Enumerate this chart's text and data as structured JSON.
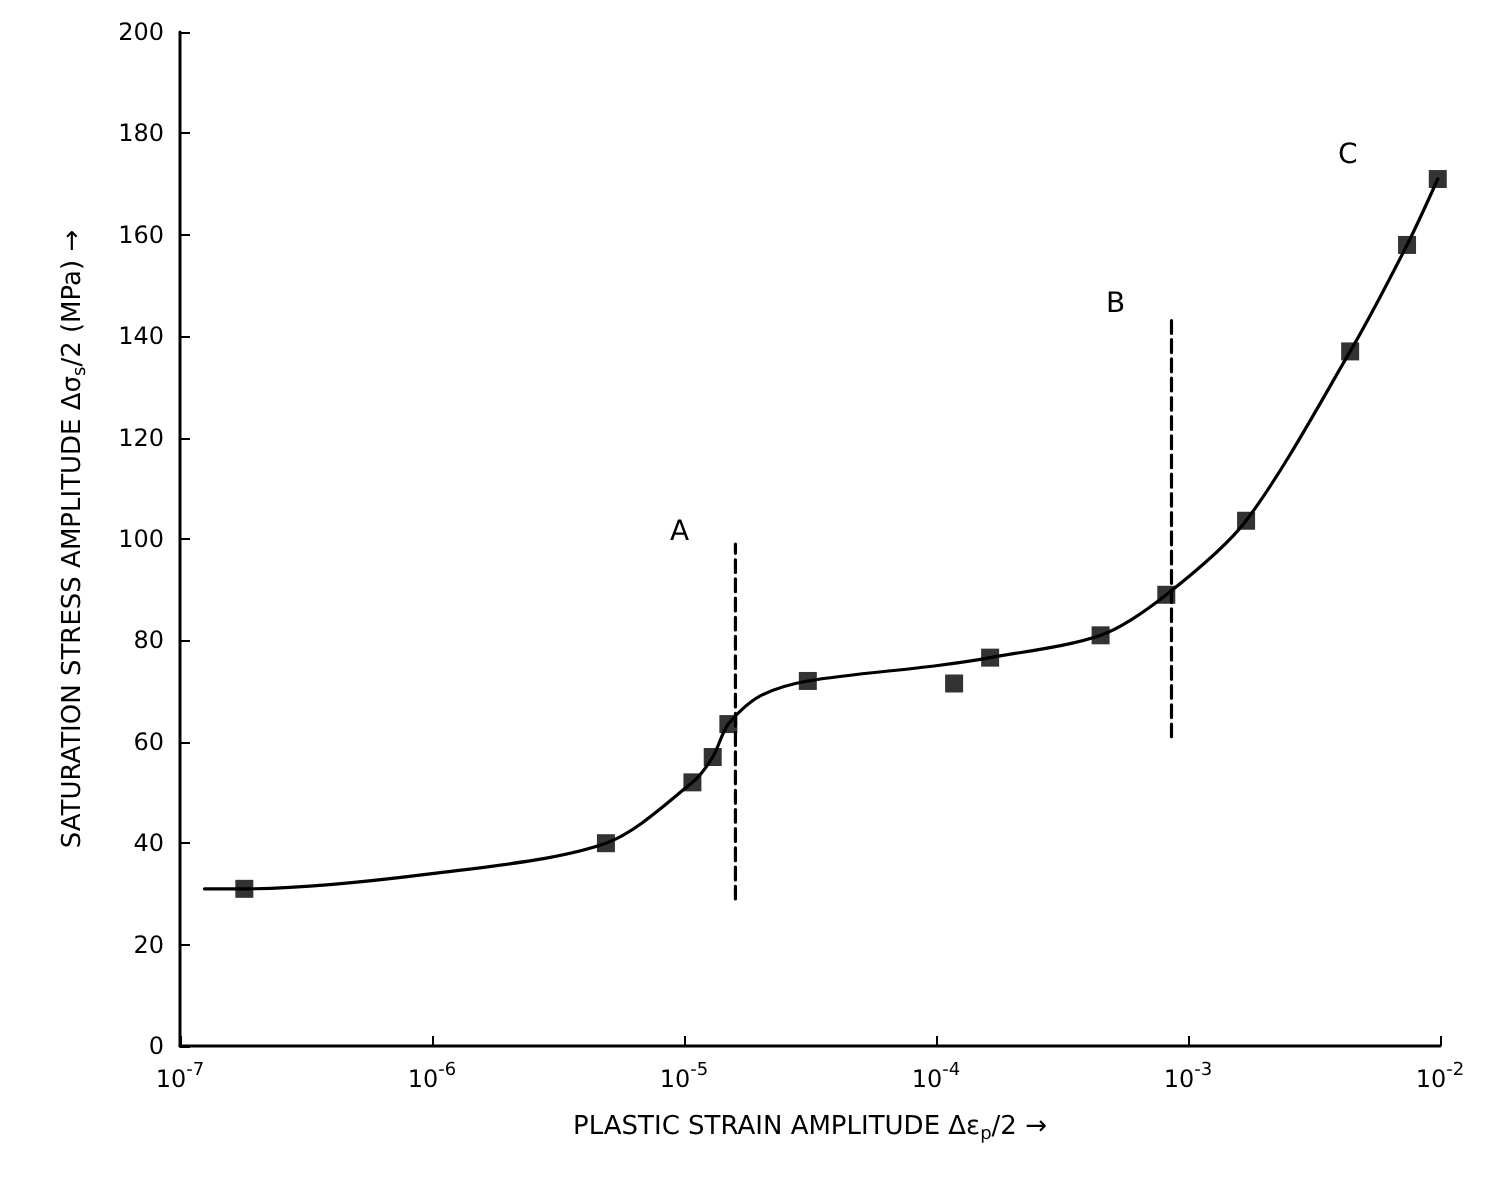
{
  "chart_data": {
    "type": "scatter",
    "xlabel": "PLASTIC STRAIN AMPLITUDE Δε$_{p}$/2 →",
    "ylabel": "SATURATION STRESS AMPLITUDE Δσ$_{s}$/2 (MPa) →",
    "log": "x",
    "grid": false,
    "xlim": [
      1e-07,
      0.01
    ],
    "xticks": [
      {
        "value": 1e-07,
        "label": "10$^{-7}$"
      },
      {
        "value": 1e-06,
        "label": "10$^{-6}$"
      },
      {
        "value": 1e-05,
        "label": "10$^{-5}$"
      },
      {
        "value": 0.0001,
        "label": "10$^{-4}$"
      },
      {
        "value": 0.001,
        "label": "10$^{-3}$"
      },
      {
        "value": 0.01,
        "label": "10$^{-2}$"
      }
    ],
    "ylim": [
      0,
      200
    ],
    "yticks": [
      0,
      20,
      40,
      60,
      80,
      100,
      120,
      140,
      160,
      180,
      200
    ],
    "series": [
      {
        "color": "#000000",
        "marker": "square",
        "x": [
          1.8e-07,
          4.9e-06,
          1.08e-05,
          1.3e-05,
          1.5e-05,
          3.1e-05,
          0.000118,
          0.000164,
          0.00045,
          0.00082,
          0.0017,
          0.0044,
          0.0074,
          0.0098
        ],
        "values": [
          31,
          40,
          52,
          57,
          63.5,
          72,
          71.5,
          76.6,
          81,
          89,
          103.6,
          137,
          158,
          171
        ]
      },
      {
        "type": "line",
        "color": "#000000",
        "marker": "none",
        "line_style": "solid",
        "x": [
          1.25e-07,
          1.8e-07,
          1e-06,
          4.9e-06,
          1.08e-05,
          1.3e-05,
          1.5e-05,
          2e-05,
          3.1e-05,
          0.0001,
          0.000164,
          0.00045,
          0.00082,
          0.0017,
          0.0044,
          0.0074,
          0.0098
        ],
        "values": [
          31,
          31,
          34,
          40,
          52,
          57,
          63.5,
          69,
          72,
          75,
          76.6,
          81,
          89,
          103.6,
          137,
          158,
          171
        ]
      },
      {
        "type": "line",
        "color": "#000000",
        "marker": "none",
        "line_style": "dashed",
        "x": [
          1.6e-05,
          1.6e-05
        ],
        "values": [
          29,
          99
        ]
      },
      {
        "type": "line",
        "color": "#000000",
        "marker": "none",
        "line_style": "dashed",
        "x": [
          0.00086,
          0.00086
        ],
        "values": [
          61,
          144
        ]
      }
    ],
    "annotations": [
      "A",
      "B",
      "C"
    ]
  }
}
